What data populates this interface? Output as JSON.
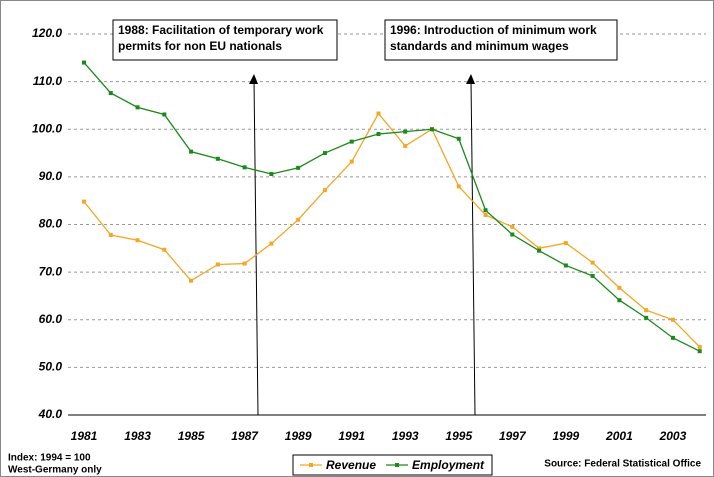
{
  "chart_data": {
    "type": "line",
    "categories": [
      "1981",
      null,
      "1983",
      null,
      "1985",
      null,
      "1987",
      null,
      "1989",
      null,
      "1991",
      null,
      "1993",
      null,
      "1995",
      null,
      "1997",
      null,
      "1999",
      null,
      "2001",
      null,
      "2003",
      null
    ],
    "series": [
      {
        "name": "Revenue",
        "color": "#f5a623",
        "values": [
          84.8,
          77.8,
          76.7,
          74.7,
          68.2,
          71.6,
          71.8,
          76.0,
          81.0,
          87.2,
          93.2,
          103.3,
          96.5,
          100.0,
          88.0,
          82.0,
          79.5,
          75.0,
          76.1,
          72.0,
          66.7,
          62.0,
          60.0,
          54.3
        ]
      },
      {
        "name": "Employment",
        "color": "#1a8a1a",
        "values": [
          114.0,
          107.6,
          104.6,
          103.1,
          95.3,
          93.8,
          92.0,
          90.6,
          91.9,
          95.0,
          97.4,
          99.0,
          99.5,
          100.0,
          98.0,
          83.0,
          77.9,
          74.5,
          71.4,
          69.2,
          64.1,
          60.4,
          56.2,
          53.4
        ]
      }
    ],
    "ylim": [
      40,
      120
    ],
    "yticks": [
      {
        "value": 40,
        "label": "40.0"
      },
      {
        "value": 50,
        "label": "50.0"
      },
      {
        "value": 60,
        "label": "60.0"
      },
      {
        "value": 70,
        "label": "70.0"
      },
      {
        "value": 80,
        "label": "80.0"
      },
      {
        "value": 90,
        "label": "90.0"
      },
      {
        "value": 100,
        "label": "100.0"
      },
      {
        "value": 110,
        "label": "110.0"
      },
      {
        "value": 120,
        "label": "120.0"
      }
    ],
    "grid": true,
    "annotations": [
      {
        "lines": [
          "1988: Facilitation of temporary work",
          "permits for non EU nationals"
        ]
      },
      {
        "lines": [
          "1996: Introduction of minimum work",
          "standards and minimum wages"
        ]
      }
    ],
    "notes": [
      "Index: 1994 = 100",
      "West-Germany only"
    ],
    "source": "Source: Federal Statistical Office"
  }
}
